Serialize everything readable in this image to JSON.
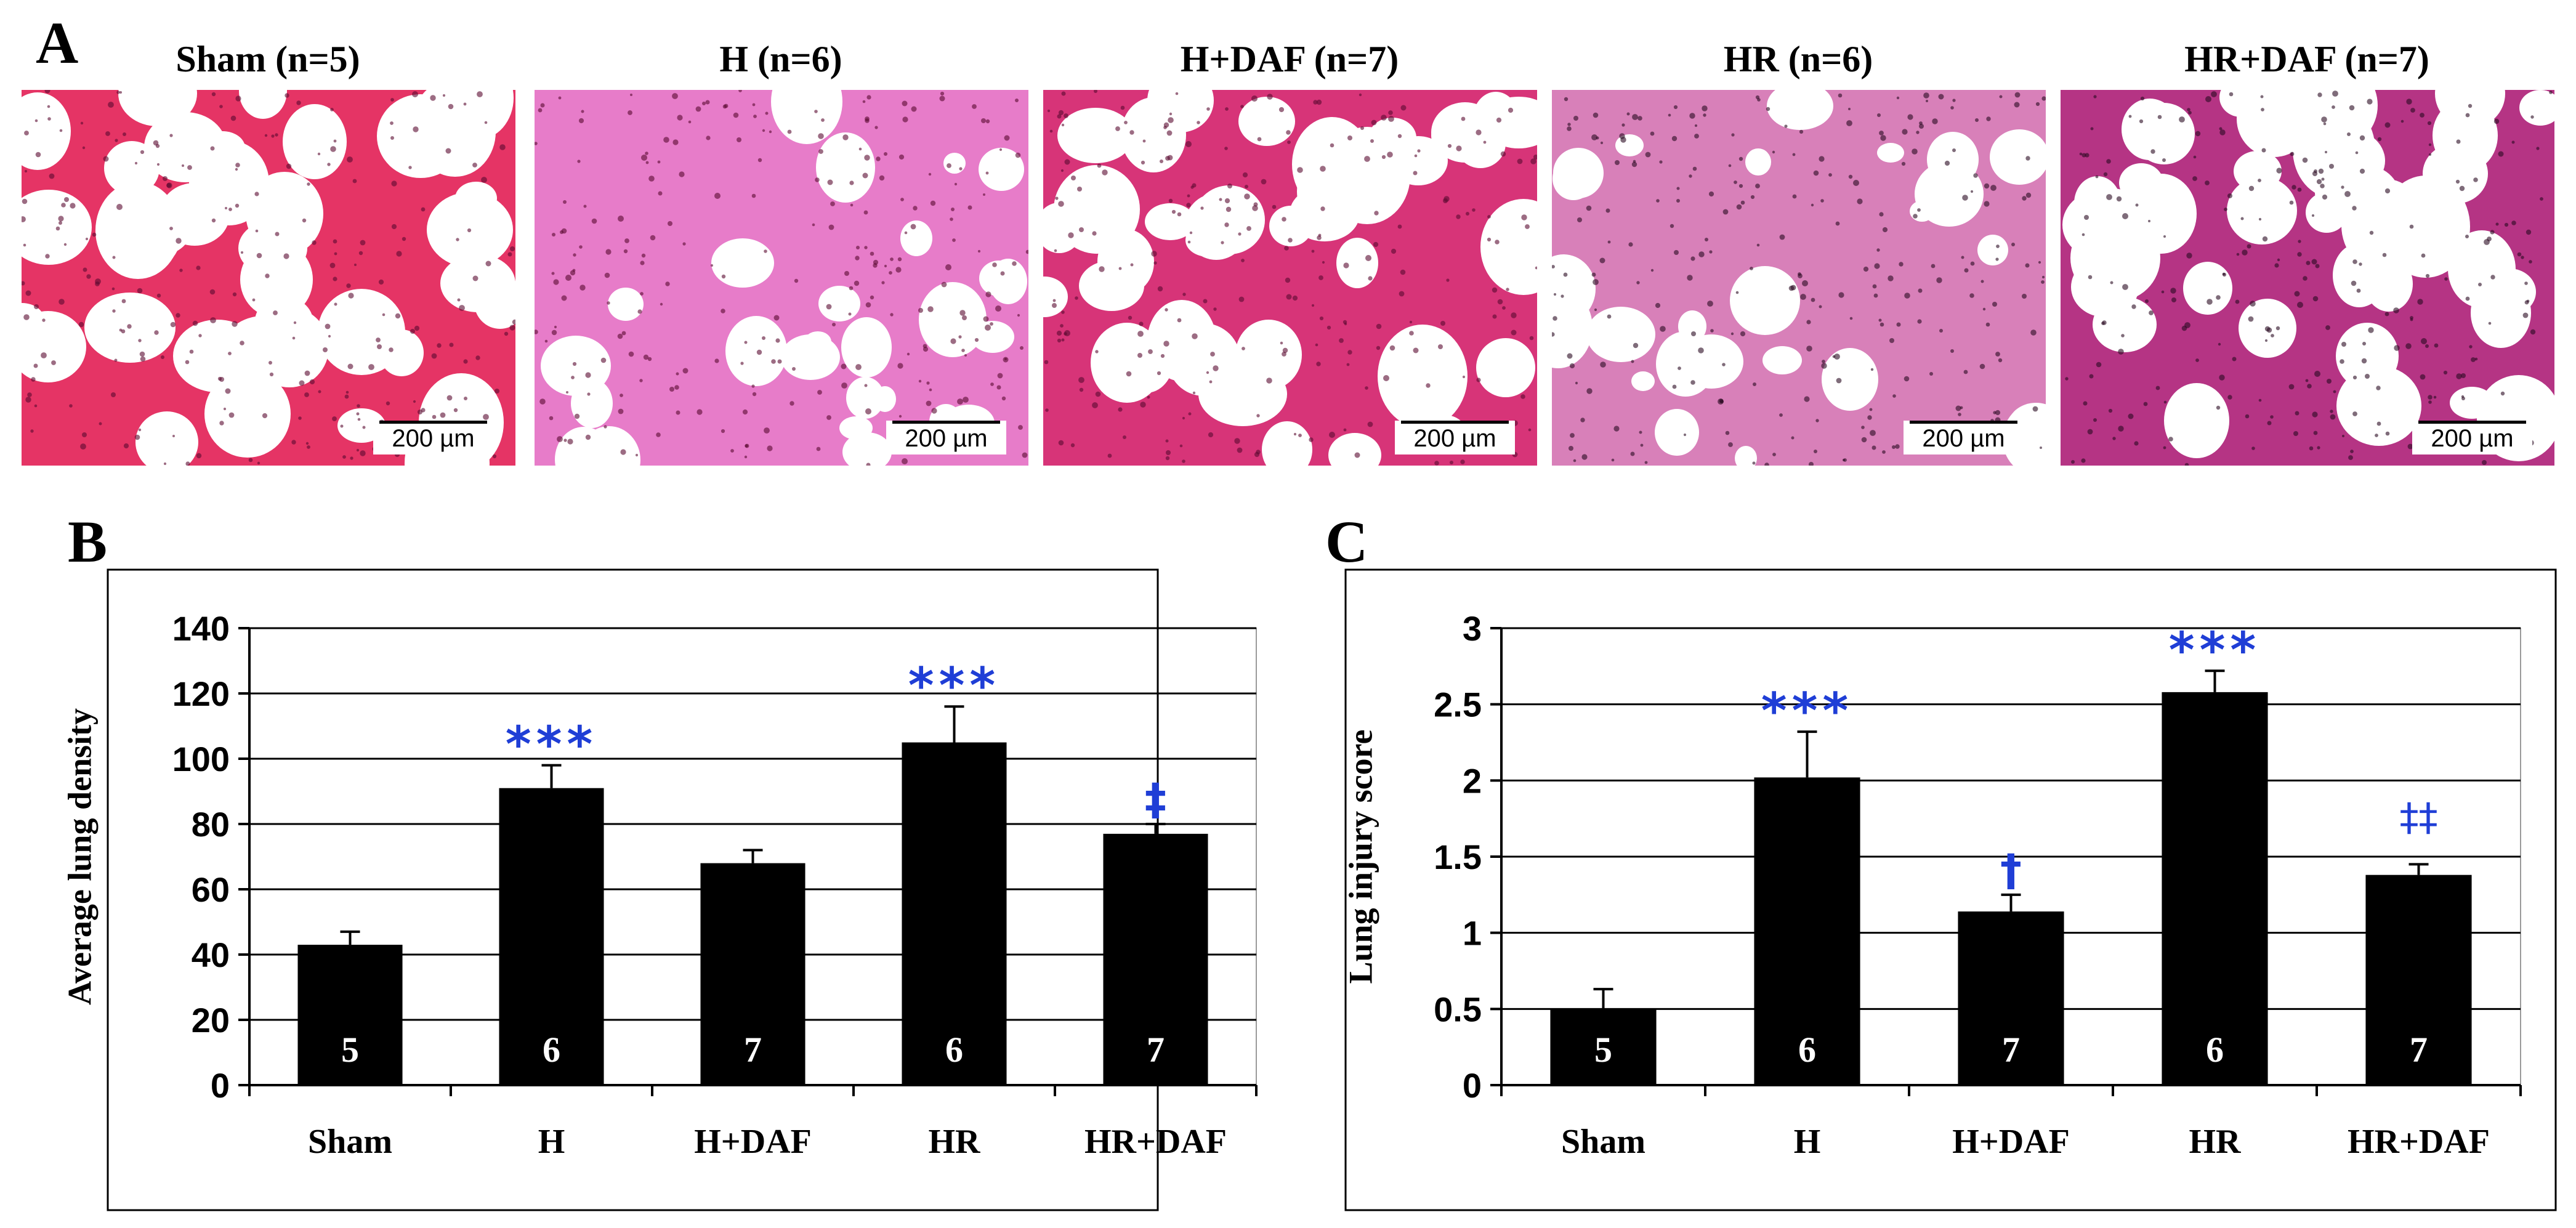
{
  "panel_labels": {
    "a": "A",
    "b": "B",
    "c": "C"
  },
  "micrographs": [
    {
      "title": "Sham (n=5)",
      "scale": "200 µm",
      "color": "#e0104a"
    },
    {
      "title": "H (n=6)",
      "scale": "200 µm",
      "color": "#d4109c"
    },
    {
      "title": "H+DAF (n=7)",
      "scale": "200 µm",
      "color": "#d01060"
    },
    {
      "title": "HR (n=6)",
      "scale": "200 µm",
      "color": "#b81880"
    },
    {
      "title": "HR+DAF (n=7)",
      "scale": "200 µm",
      "color": "#a8106e"
    }
  ],
  "colors": {
    "bar": "#000000",
    "sig": "#1f3ed6",
    "count": "#ffffff",
    "grid": "#000000"
  },
  "chart_data": [
    {
      "type": "bar",
      "title": "",
      "ylabel": "Average lung density",
      "xlabel": "",
      "ylim": [
        0,
        140
      ],
      "yticks": [
        0,
        20,
        40,
        60,
        80,
        100,
        120,
        140
      ],
      "ytick_labels": [
        "0",
        "20",
        "40",
        "60",
        "80",
        "100",
        "120",
        "140"
      ],
      "categories": [
        "Sham",
        "H",
        "H+DAF",
        "HR",
        "HR+DAF"
      ],
      "values": [
        43,
        91,
        68,
        105,
        77
      ],
      "errors": [
        4,
        7,
        4,
        11,
        3
      ],
      "counts": [
        "5",
        "6",
        "7",
        "6",
        "7"
      ],
      "significance": [
        "",
        "***",
        "",
        "***",
        "‡"
      ],
      "grid": true
    },
    {
      "type": "bar",
      "title": "",
      "ylabel": "Lung injury score",
      "xlabel": "",
      "ylim": [
        0,
        3
      ],
      "yticks": [
        0,
        0.5,
        1,
        1.5,
        2,
        2.5,
        3
      ],
      "ytick_labels": [
        "0",
        "0.5",
        "1",
        "1.5",
        "2",
        "2.5",
        "3"
      ],
      "categories": [
        "Sham",
        "H",
        "H+DAF",
        "HR",
        "HR+DAF"
      ],
      "values": [
        0.5,
        2.02,
        1.14,
        2.58,
        1.38
      ],
      "errors": [
        0.13,
        0.3,
        0.11,
        0.14,
        0.07
      ],
      "counts": [
        "5",
        "6",
        "7",
        "6",
        "7"
      ],
      "significance": [
        "",
        "***",
        "†",
        "***",
        "‡‡"
      ],
      "grid": true
    }
  ]
}
